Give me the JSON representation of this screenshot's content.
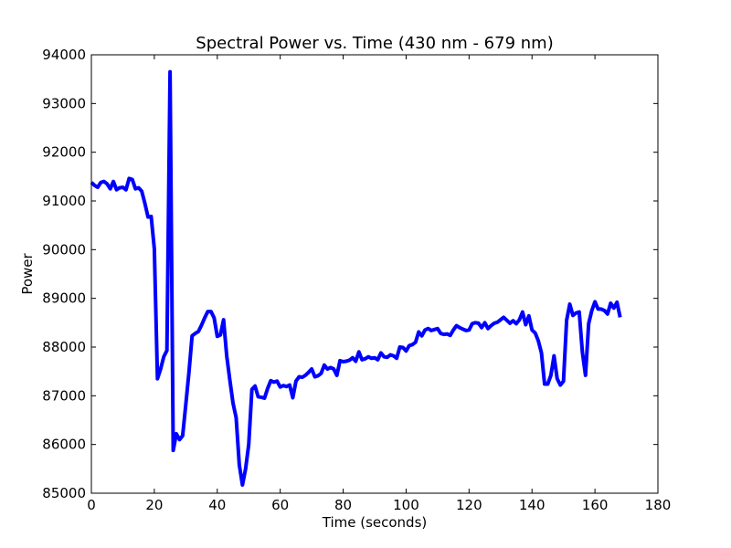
{
  "chart_data": {
    "type": "line",
    "title": "Spectral Power vs. Time (430 nm - 679 nm)",
    "xlabel": "Time (seconds)",
    "ylabel": "Power",
    "xlim": [
      0,
      180
    ],
    "ylim": [
      85000,
      94000
    ],
    "xticks": [
      0,
      20,
      40,
      60,
      80,
      100,
      120,
      140,
      160,
      180
    ],
    "yticks": [
      85000,
      86000,
      87000,
      88000,
      89000,
      90000,
      91000,
      92000,
      93000,
      94000
    ],
    "grid": false,
    "legend": "none",
    "series": [
      {
        "color": "#0000ff",
        "x": [
          0,
          1,
          2,
          3,
          4,
          5,
          6,
          7,
          8,
          9,
          10,
          11,
          12,
          13,
          14,
          15,
          16,
          17,
          18,
          19,
          20,
          21,
          22,
          23,
          24,
          25,
          26,
          27,
          28,
          29,
          30,
          31,
          32,
          33,
          34,
          35,
          36,
          37,
          38,
          39,
          40,
          41,
          42,
          43,
          44,
          45,
          46,
          47,
          48,
          49,
          50,
          51,
          52,
          53,
          54,
          55,
          56,
          57,
          58,
          59,
          60,
          61,
          62,
          63,
          64,
          65,
          66,
          67,
          68,
          69,
          70,
          71,
          72,
          73,
          74,
          75,
          76,
          77,
          78,
          79,
          80,
          81,
          82,
          83,
          84,
          85,
          86,
          87,
          88,
          89,
          90,
          91,
          92,
          93,
          94,
          95,
          96,
          97,
          98,
          99,
          100,
          101,
          102,
          103,
          104,
          105,
          106,
          107,
          108,
          109,
          110,
          111,
          112,
          113,
          114,
          115,
          116,
          117,
          118,
          119,
          120,
          121,
          122,
          123,
          124,
          125,
          126,
          127,
          128,
          129,
          130,
          131,
          132,
          133,
          134,
          135,
          136,
          137,
          138,
          139,
          140,
          141,
          142,
          143,
          144,
          145,
          146,
          147,
          148,
          149,
          150,
          151,
          152,
          153,
          154,
          155,
          156,
          157,
          158,
          159,
          160,
          161,
          162,
          163,
          164,
          165,
          166,
          167,
          168
        ],
        "y": [
          91380,
          91320,
          91280,
          91380,
          91400,
          91350,
          91250,
          91400,
          91230,
          91270,
          91280,
          91230,
          91460,
          91440,
          91250,
          91270,
          91200,
          90950,
          90670,
          90680,
          90020,
          87350,
          87550,
          87800,
          87930,
          93650,
          85880,
          86220,
          86100,
          86180,
          86820,
          87480,
          88230,
          88280,
          88320,
          88450,
          88600,
          88730,
          88730,
          88600,
          88220,
          88250,
          88560,
          87820,
          87320,
          86850,
          86550,
          85580,
          85170,
          85500,
          86000,
          87130,
          87200,
          86980,
          86970,
          86950,
          87150,
          87310,
          87280,
          87300,
          87180,
          87210,
          87190,
          87220,
          86960,
          87300,
          87390,
          87380,
          87420,
          87480,
          87550,
          87390,
          87410,
          87460,
          87630,
          87550,
          87580,
          87550,
          87420,
          87720,
          87700,
          87710,
          87730,
          87780,
          87710,
          87900,
          87740,
          87760,
          87800,
          87770,
          87780,
          87740,
          87880,
          87800,
          87790,
          87840,
          87820,
          87770,
          88000,
          87990,
          87920,
          88030,
          88050,
          88100,
          88310,
          88230,
          88350,
          88380,
          88340,
          88360,
          88380,
          88280,
          88260,
          88270,
          88240,
          88350,
          88440,
          88400,
          88370,
          88340,
          88350,
          88480,
          88500,
          88490,
          88400,
          88500,
          88380,
          88440,
          88490,
          88510,
          88560,
          88610,
          88550,
          88490,
          88540,
          88480,
          88560,
          88720,
          88460,
          88640,
          88350,
          88290,
          88130,
          87880,
          87240,
          87240,
          87420,
          87820,
          87350,
          87220,
          87300,
          88550,
          88880,
          88650,
          88700,
          88720,
          87900,
          87420,
          88480,
          88750,
          88930,
          88780,
          88780,
          88750,
          88680,
          88900,
          88800,
          88920,
          88610
        ]
      }
    ]
  }
}
